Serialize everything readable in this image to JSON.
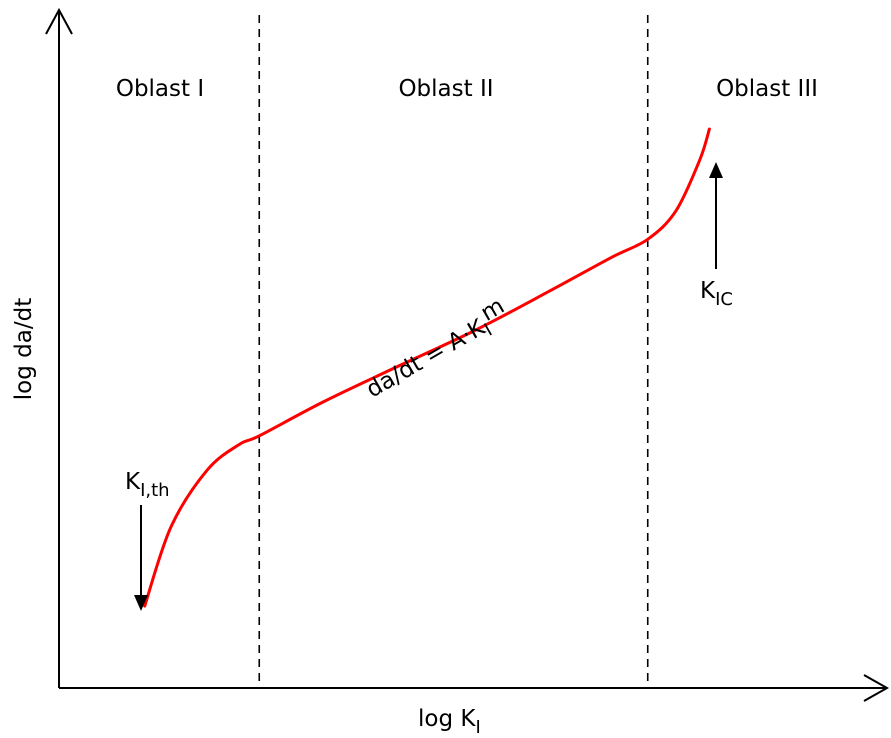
{
  "chart_data": {
    "type": "line",
    "title": "",
    "xlabel": {
      "main": "log K",
      "sub": "I"
    },
    "ylabel": "log da/dt",
    "grid": false,
    "regions": [
      {
        "label": "Oblast I"
      },
      {
        "label": "Oblast II"
      },
      {
        "label": "Oblast III"
      }
    ],
    "region_boundaries": [
      {
        "name": "boundary-1",
        "x": 0.25
      },
      {
        "name": "boundary-2",
        "x": 0.735
      }
    ],
    "series": [
      {
        "color": "#ff0000",
        "x": [
          0.107,
          0.14,
          0.185,
          0.225,
          0.25,
          0.33,
          0.42,
          0.52,
          0.61,
          0.69,
          0.735,
          0.77,
          0.8,
          0.812
        ],
        "y": [
          0.07,
          0.225,
          0.335,
          0.385,
          0.402,
          0.468,
          0.535,
          0.608,
          0.682,
          0.75,
          0.785,
          0.84,
          0.94,
          1.0
        ]
      }
    ],
    "annotations": {
      "threshold": {
        "main": "K",
        "sub": "I,th"
      },
      "toughness": {
        "main": "K",
        "sub": "IC"
      },
      "paris_law": {
        "main": "da/dt = A·K",
        "sub": "I",
        "sup": "m"
      }
    }
  },
  "colors": {
    "curve": "#ff0000",
    "axis": "#000000",
    "divider": "#000000"
  }
}
